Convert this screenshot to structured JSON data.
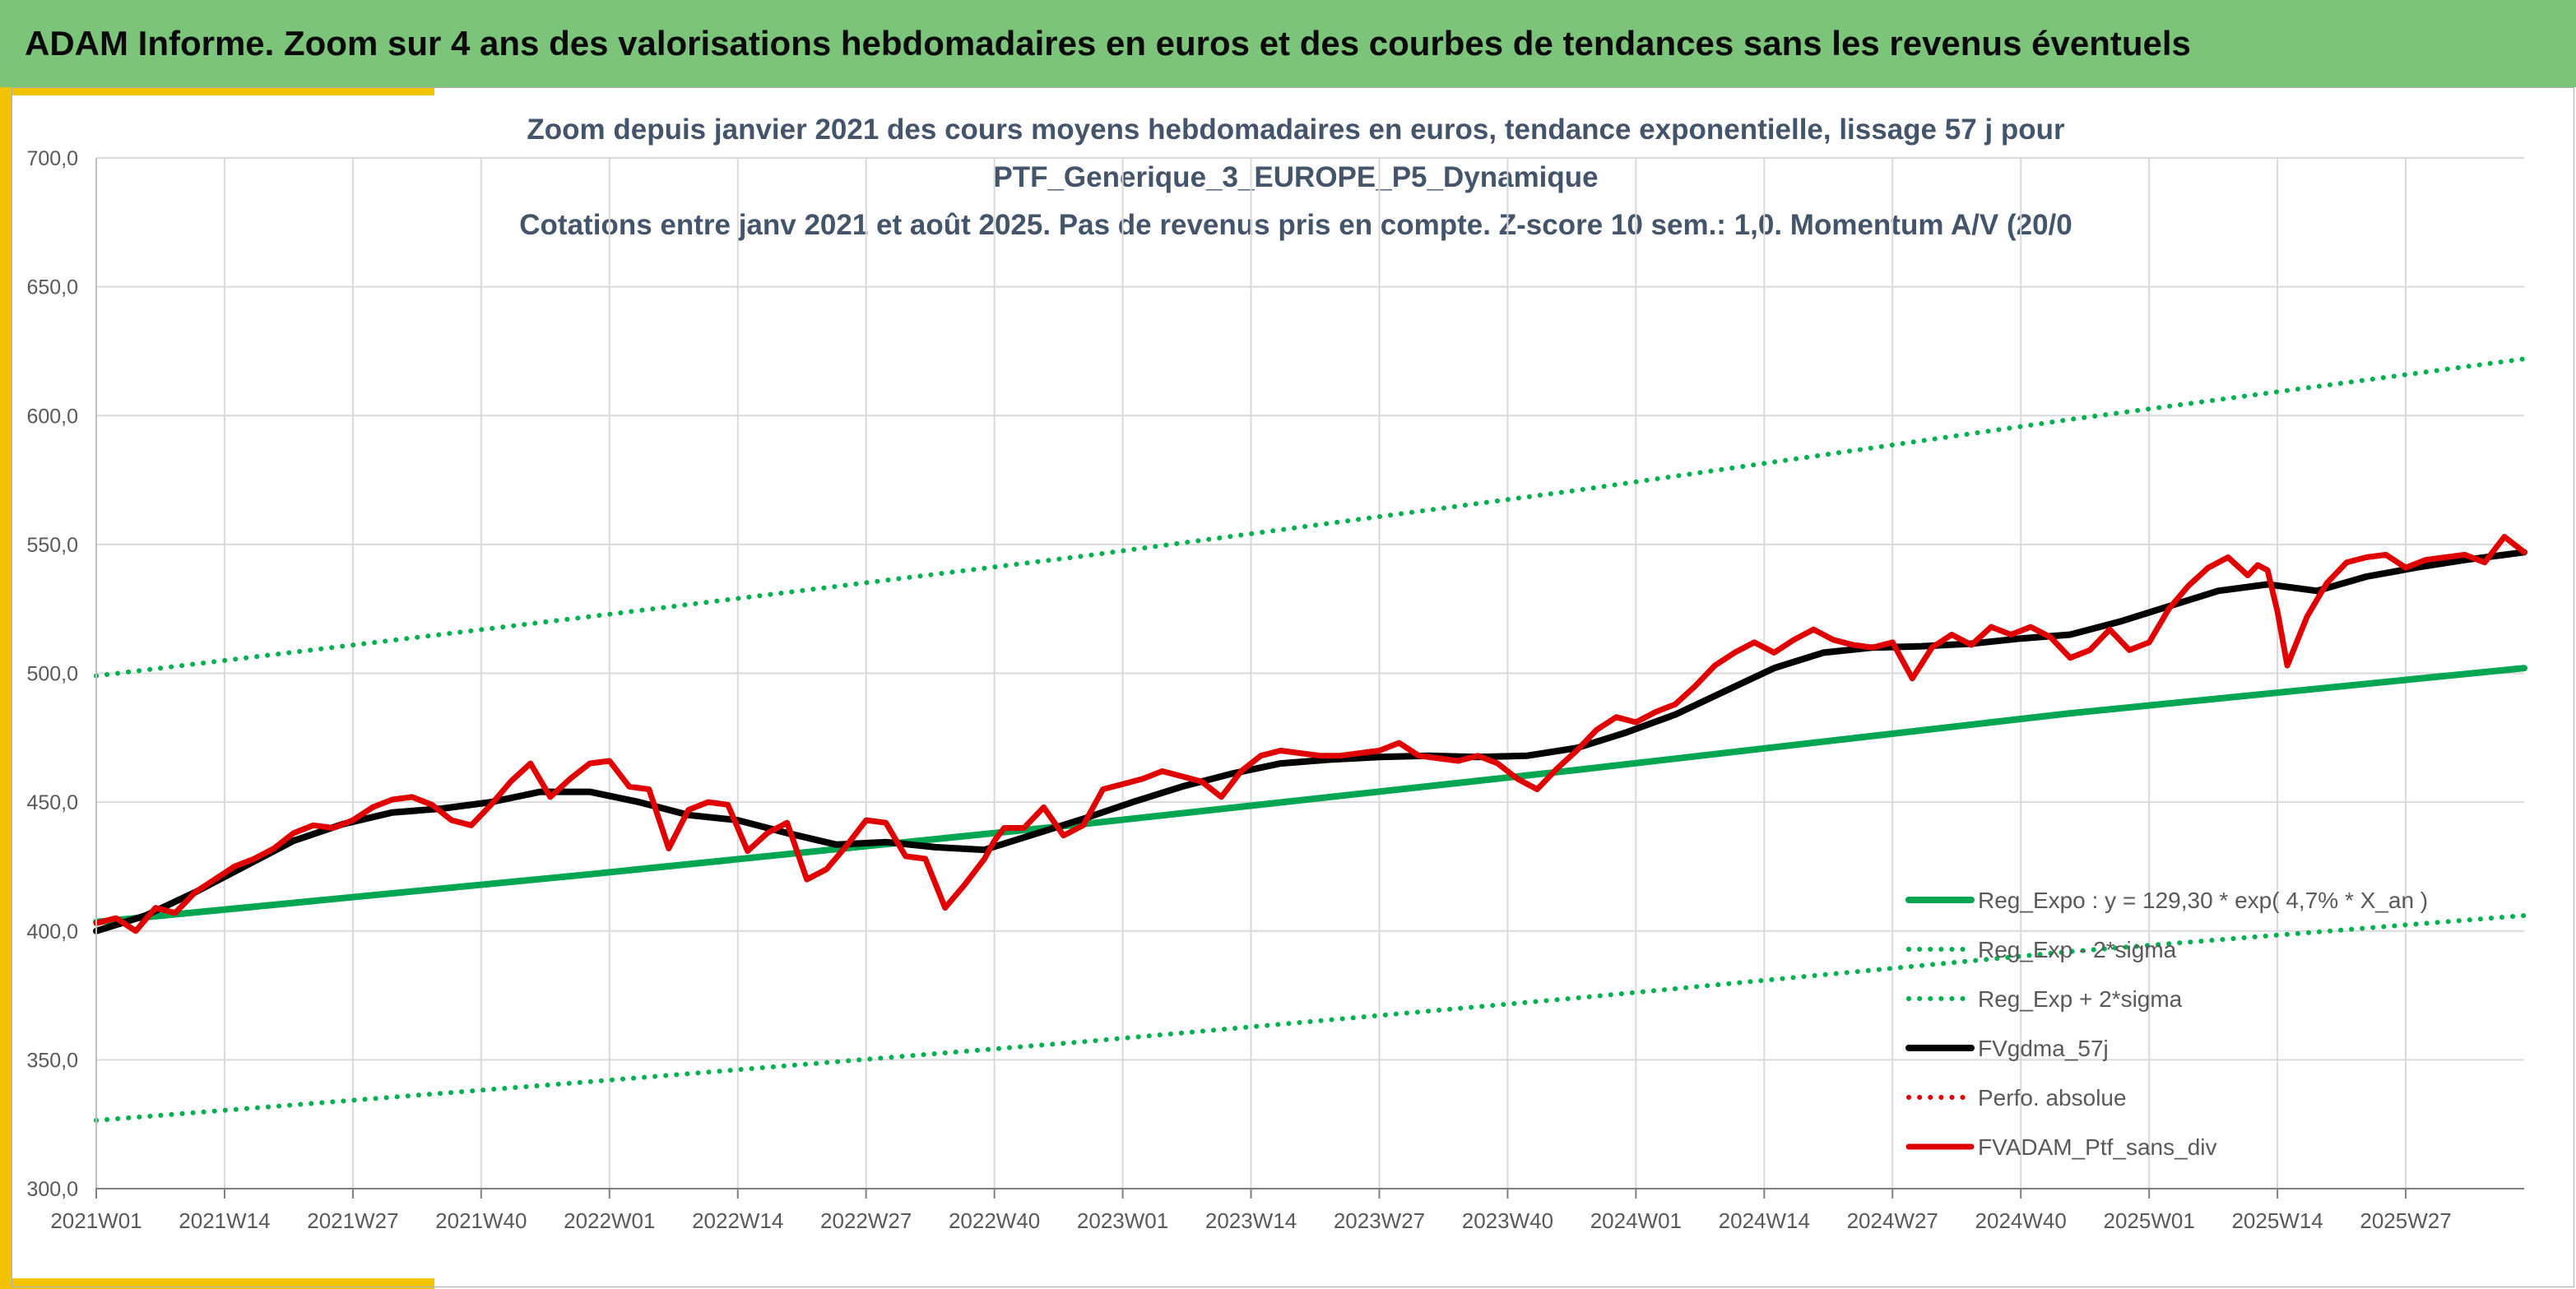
{
  "header": {
    "banner_title": "ADAM Informe. Zoom sur 4 ans des valorisations hebdomadaires en euros et des courbes de tendances sans les revenus éventuels"
  },
  "colors": {
    "banner_bg": "#7cc47a",
    "accent": "#f4c300",
    "regression": "#00a651",
    "sigma_band": "#00b050",
    "smoothed": "#000000",
    "portfolio": "#e00000",
    "title_text": "#44546a"
  },
  "chart_data": {
    "type": "line",
    "title_lines": [
      "Zoom depuis janvier 2021 des cours moyens hebdomadaires en euros, tendance exponentielle, lissage 57 j pour",
      "PTF_Generique_3_EUROPE_P5_Dynamique",
      "Cotations entre janv 2021 et août 2025. Pas de revenus pris en compte. Z-score 10 sem.: 1,0. Momentum A/V (20/0"
    ],
    "ylim": [
      300,
      700
    ],
    "yticks": [
      "300,0",
      "350,0",
      "400,0",
      "450,0",
      "500,0",
      "550,0",
      "600,0",
      "650,0",
      "700,0"
    ],
    "ytick_values": [
      300,
      350,
      400,
      450,
      500,
      550,
      600,
      650,
      700
    ],
    "x_labels": [
      "2021W01",
      "2021W14",
      "2021W27",
      "2021W40",
      "2022W01",
      "2022W14",
      "2022W27",
      "2022W40",
      "2023W01",
      "2023W14",
      "2023W27",
      "2023W40",
      "2024W01",
      "2024W14",
      "2024W27",
      "2024W40",
      "2025W01",
      "2025W14",
      "2025W27"
    ],
    "x_label_weeks": [
      0,
      13,
      26,
      39,
      52,
      65,
      78,
      91,
      104,
      117,
      130,
      143,
      156,
      169,
      182,
      195,
      208,
      221,
      234
    ],
    "x_range_weeks": [
      0,
      246
    ],
    "grid": true,
    "legend_position": "bottom-right",
    "series": [
      {
        "name": "Reg_Expo : y = 129,30 * exp( 4,7% *  X_an )",
        "key": "reg",
        "style": "solid",
        "x": [
          0,
          50,
          100,
          150,
          200,
          246
        ],
        "y": [
          403.5,
          422,
          441.5,
          462.5,
          484.5,
          502
        ]
      },
      {
        "name": "Reg_Exp - 2*sigma",
        "key": "lower",
        "style": "dotted",
        "x": [
          0,
          50,
          100,
          150,
          200,
          246
        ],
        "y": [
          326.5,
          341.5,
          357,
          374,
          392,
          406
        ]
      },
      {
        "name": "Reg_Exp + 2*sigma",
        "key": "upper",
        "style": "dotted",
        "x": [
          0,
          50,
          100,
          150,
          200,
          246
        ],
        "y": [
          499,
          522,
          545.5,
          571,
          598.5,
          622
        ]
      },
      {
        "name": "FVgdma_57j",
        "key": "smooth",
        "style": "solid",
        "x": [
          0,
          5,
          10,
          15,
          20,
          25,
          30,
          35,
          40,
          45,
          50,
          55,
          60,
          65,
          70,
          75,
          80,
          85,
          90,
          95,
          100,
          105,
          110,
          115,
          120,
          125,
          130,
          135,
          140,
          145,
          150,
          155,
          160,
          165,
          170,
          175,
          180,
          185,
          190,
          195,
          200,
          205,
          210,
          215,
          220,
          225,
          230,
          235,
          240,
          246
        ],
        "y": [
          400,
          406,
          415,
          425,
          435,
          441.5,
          446,
          447.5,
          450,
          454,
          454,
          450,
          445,
          443,
          438,
          433.5,
          434.5,
          432.5,
          431.5,
          437.5,
          443.5,
          450,
          456,
          461,
          465,
          466.5,
          467.5,
          468,
          467.5,
          468,
          471,
          477,
          484,
          493,
          502,
          508,
          510,
          510.5,
          511.5,
          513.5,
          515,
          520,
          526,
          532,
          534.5,
          532,
          537.5,
          541,
          544,
          547
        ]
      },
      {
        "name": "Perfo. absolue",
        "key": "perf",
        "style": "dotted",
        "x": [],
        "y": []
      },
      {
        "name": "FVADAM_Ptf_sans_div",
        "key": "ptf",
        "style": "solid",
        "x": [
          0,
          2,
          4,
          6,
          8,
          10,
          12,
          14,
          16,
          18,
          20,
          22,
          24,
          26,
          28,
          30,
          32,
          34,
          36,
          38,
          40,
          42,
          44,
          46,
          48,
          50,
          52,
          54,
          56,
          58,
          60,
          62,
          64,
          66,
          68,
          70,
          72,
          74,
          76,
          78,
          80,
          82,
          84,
          86,
          88,
          90,
          91,
          92,
          94,
          96,
          98,
          100,
          102,
          104,
          106,
          108,
          110,
          112,
          114,
          116,
          118,
          120,
          122,
          124,
          126,
          128,
          130,
          132,
          134,
          136,
          138,
          140,
          142,
          144,
          146,
          148,
          150,
          152,
          154,
          156,
          158,
          160,
          162,
          164,
          166,
          168,
          170,
          172,
          174,
          176,
          178,
          180,
          182,
          184,
          186,
          188,
          190,
          192,
          194,
          196,
          198,
          200,
          202,
          204,
          206,
          208,
          210,
          212,
          214,
          216,
          218,
          219,
          220,
          221,
          222,
          224,
          226,
          228,
          230,
          232,
          234,
          236,
          238,
          240,
          242,
          244,
          246
        ],
        "y": [
          403,
          405,
          400,
          409,
          407,
          415,
          420,
          425,
          428,
          432,
          438,
          441,
          440,
          443,
          448,
          451,
          452,
          449,
          443,
          441,
          449,
          458,
          465,
          452,
          459,
          465,
          466,
          456,
          455,
          432,
          447,
          450,
          449,
          431,
          438,
          442,
          420,
          424,
          433,
          443,
          442,
          429,
          428,
          409,
          418,
          428,
          435,
          440,
          440,
          448,
          437,
          441,
          455,
          457,
          459,
          462,
          460,
          458,
          452,
          462,
          468,
          470,
          469,
          468,
          468,
          469,
          470,
          473,
          468,
          467,
          466,
          468,
          465,
          459,
          455,
          463,
          470,
          478,
          483,
          481,
          485,
          488,
          495,
          503,
          508,
          512,
          508,
          513,
          517,
          513,
          511,
          510,
          512,
          498,
          510,
          515,
          511,
          518,
          515,
          518,
          514,
          506,
          509,
          517,
          509,
          512,
          525,
          534,
          541,
          545,
          538,
          542,
          540,
          524,
          503,
          522,
          535,
          543,
          545,
          546,
          541,
          544,
          545,
          546,
          543,
          553,
          547
        ]
      }
    ]
  }
}
